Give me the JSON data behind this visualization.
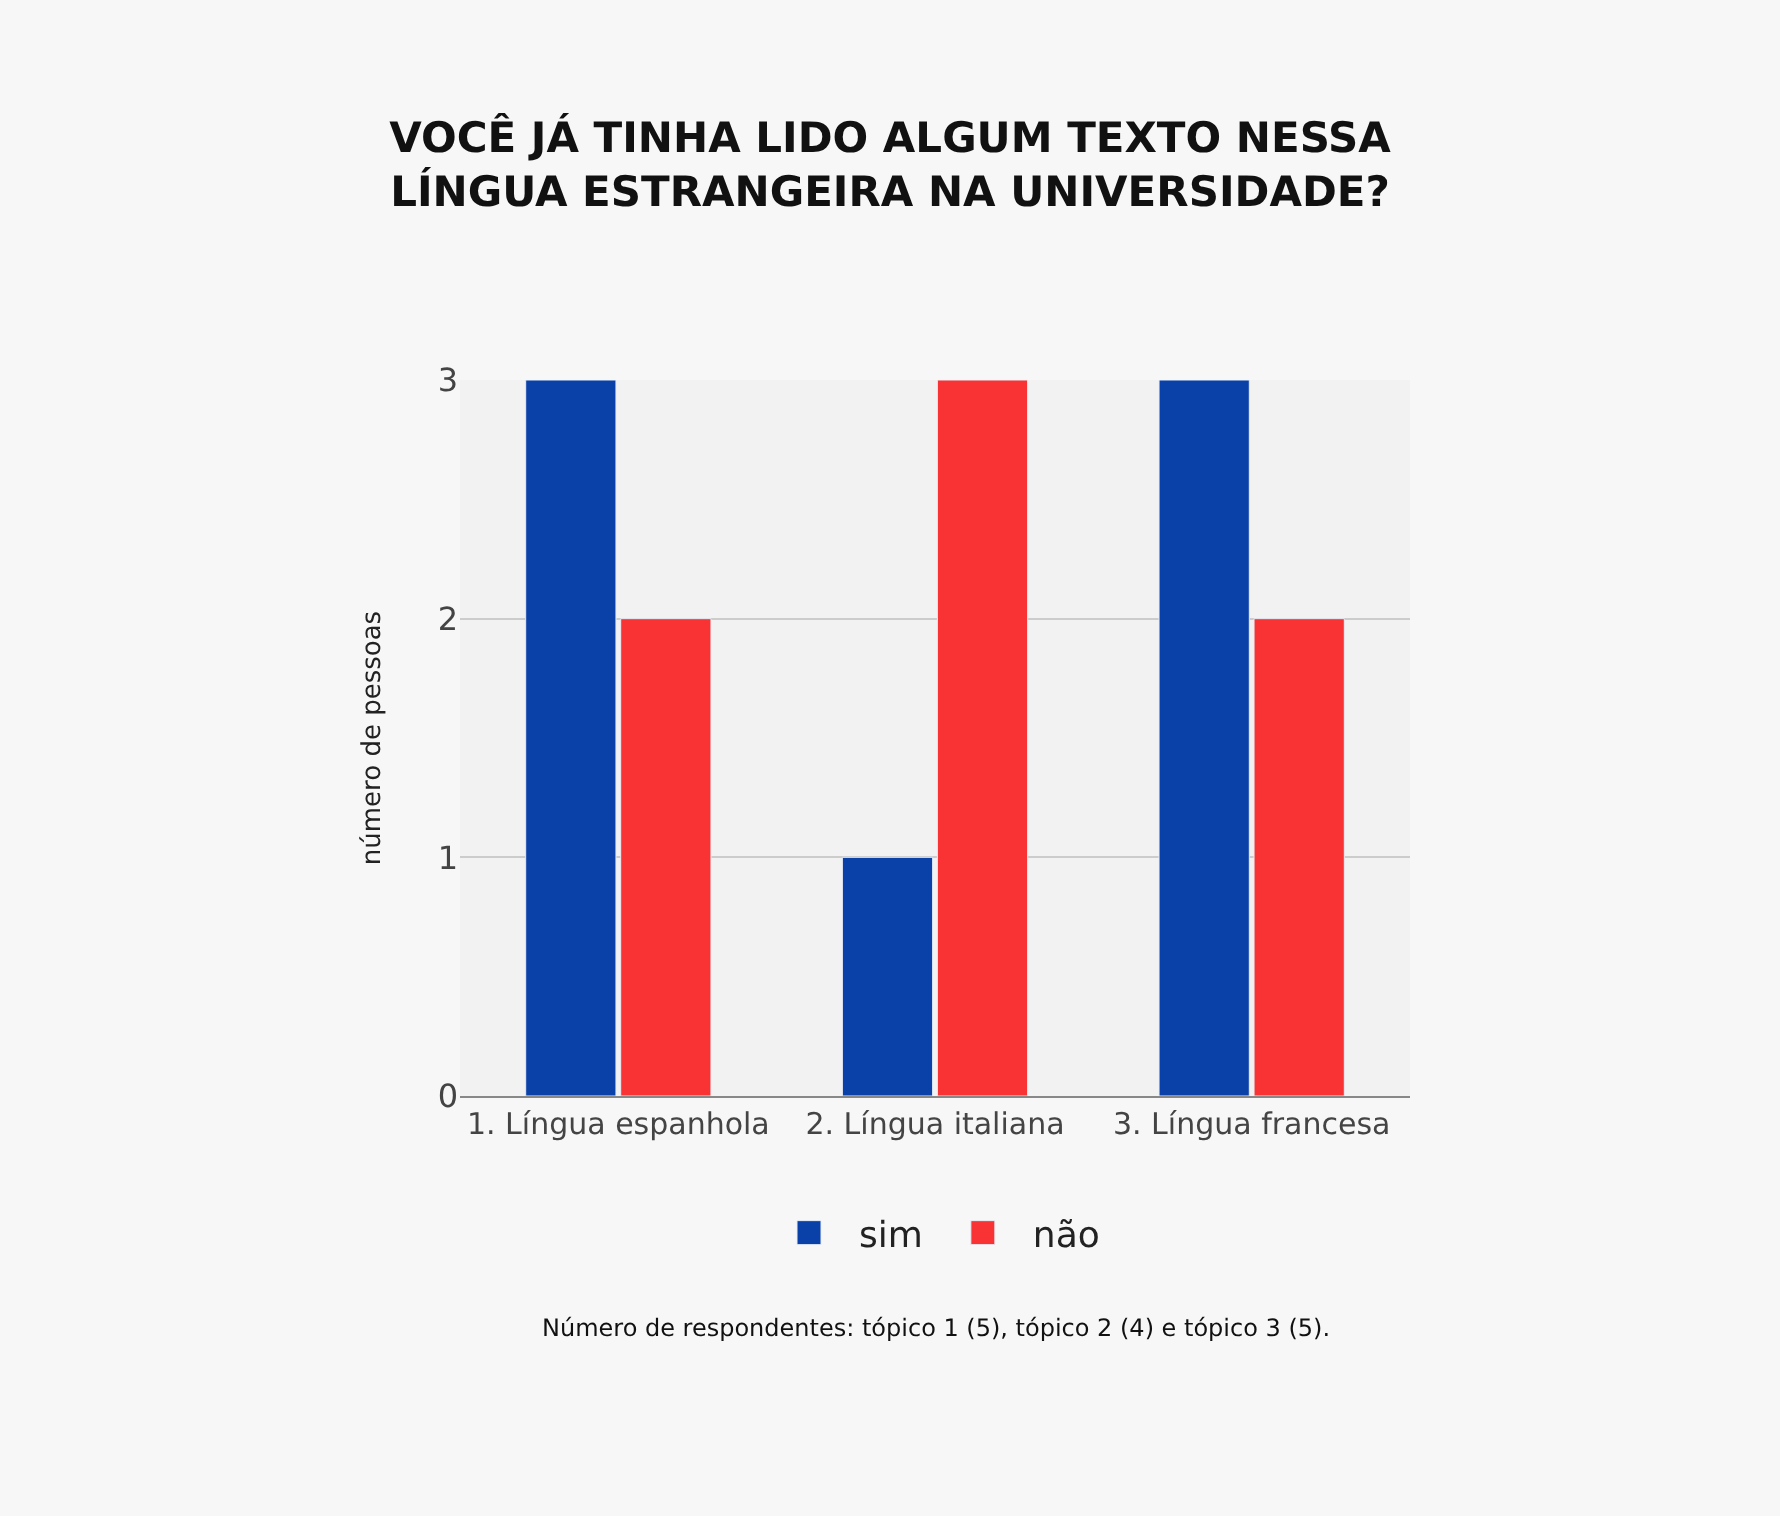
{
  "chart_data": {
    "type": "bar",
    "title": "VOCÊ JÁ TINHA LIDO ALGUM TEXTO NESSA\nLÍNGUA ESTRANGEIRA NA UNIVERSIDADE?",
    "ylabel": "número de pessoas",
    "categories": [
      "1. Língua espanhola",
      "2. Língua italiana",
      "3. Língua francesa"
    ],
    "series": [
      {
        "name": "sim",
        "color": "#0a41a8",
        "values": [
          3,
          1,
          3
        ]
      },
      {
        "name": "não",
        "color": "#f93333",
        "values": [
          2,
          3,
          2
        ]
      }
    ],
    "ylim": [
      0,
      3
    ],
    "yticks": [
      0,
      1,
      2,
      3
    ],
    "grid": "y",
    "legend": "bottom",
    "annotations": [
      "Número de respondentes: tópico 1 (5), tópico 2 (4) e tópico 3 (5)."
    ]
  }
}
